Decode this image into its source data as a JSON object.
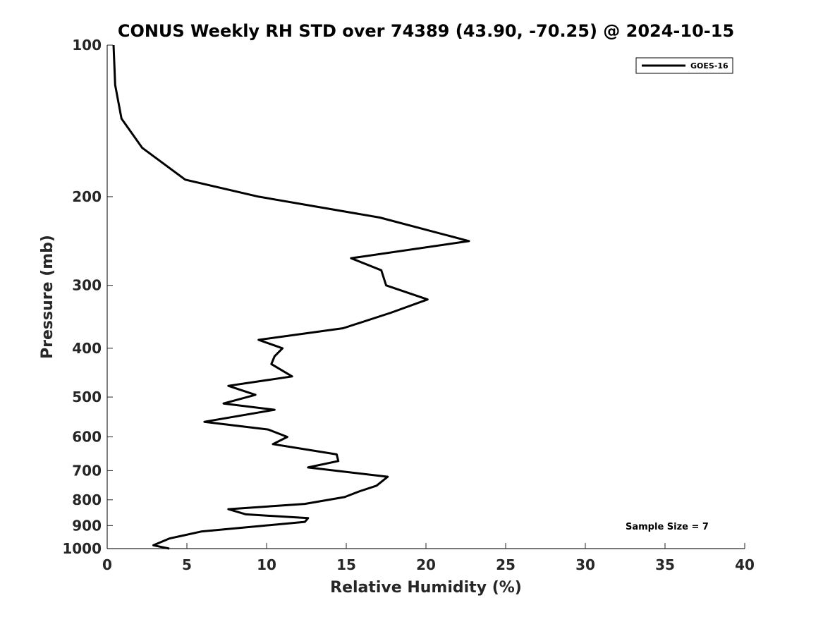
{
  "chart_data": {
    "type": "line",
    "title": "CONUS Weekly RH STD over 74389 (43.90, -70.25) @ 2024-10-15",
    "xlabel": "Relative Humidity (%)",
    "ylabel": "Pressure (mb)",
    "xlim": [
      0,
      40
    ],
    "ylim": [
      1000,
      100
    ],
    "yscale": "log",
    "xticks": [
      0,
      5,
      10,
      15,
      20,
      25,
      30,
      35,
      40
    ],
    "yticks": [
      100,
      200,
      300,
      400,
      500,
      600,
      700,
      800,
      900,
      1000
    ],
    "grid": false,
    "legend_position": "top-right",
    "annotation": "Sample Size = 7",
    "series": [
      {
        "name": "GOES-16",
        "color": "#000000",
        "x": [
          0.4,
          0.5,
          0.9,
          2.2,
          4.9,
          9.5,
          17.1,
          22.7,
          15.3,
          17.2,
          17.5,
          20.1,
          17.8,
          14.8,
          9.5,
          11.0,
          10.5,
          10.3,
          11.6,
          7.6,
          9.3,
          7.3,
          10.5,
          6.1,
          10.1,
          11.3,
          10.4,
          14.4,
          14.5,
          12.6,
          17.6,
          16.9,
          15.8,
          14.9,
          12.4,
          7.6,
          8.7,
          12.6,
          12.4,
          5.9,
          3.9,
          2.9,
          3.9
        ],
        "y": [
          100,
          120,
          140,
          160,
          185,
          200,
          220,
          245,
          265,
          280,
          300,
          320,
          340,
          365,
          385,
          400,
          415,
          430,
          455,
          475,
          495,
          515,
          530,
          560,
          580,
          600,
          620,
          650,
          670,
          690,
          720,
          750,
          770,
          790,
          815,
          835,
          855,
          870,
          885,
          925,
          955,
          985,
          1000
        ]
      }
    ]
  }
}
